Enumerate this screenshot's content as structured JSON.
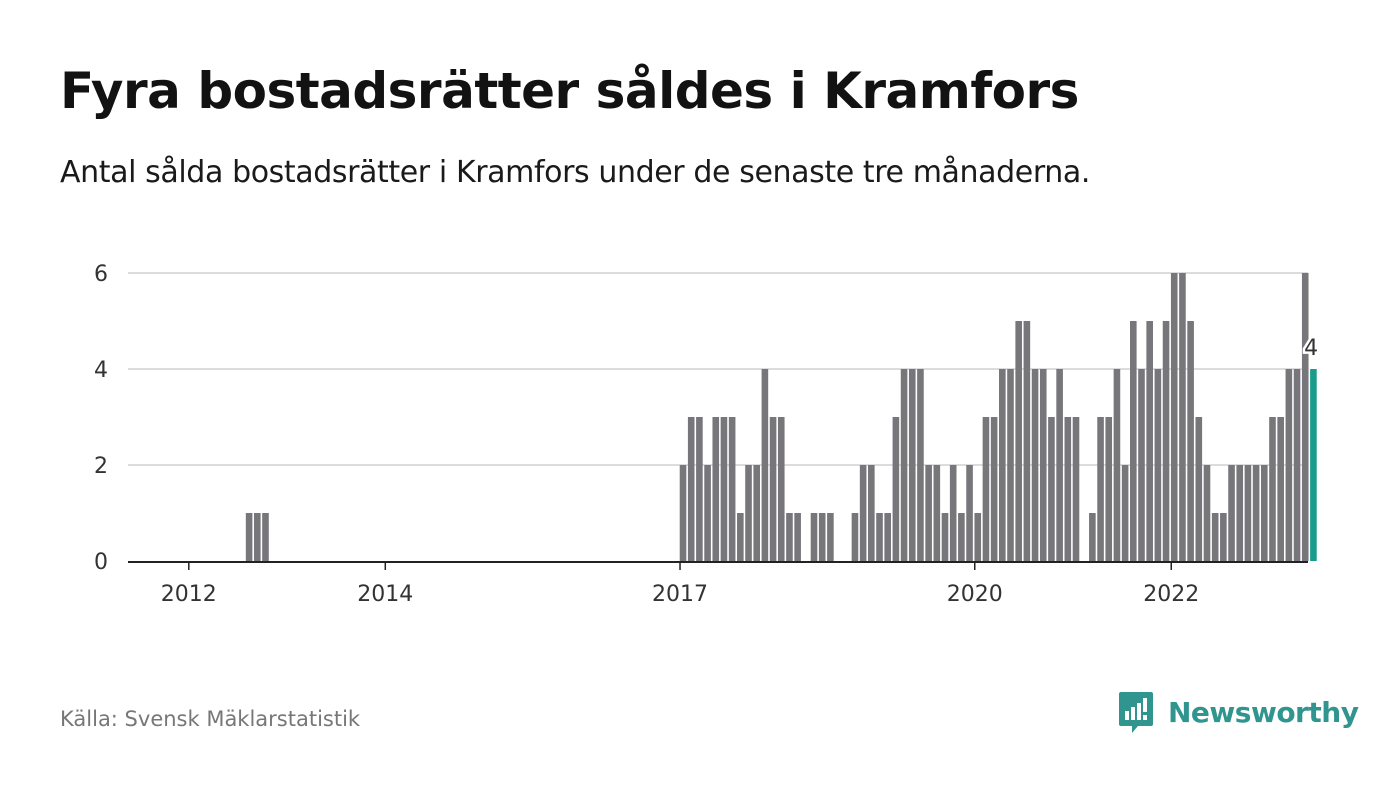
{
  "title": "Fyra bostadsrätter såldes i Kramfors",
  "subtitle": "Antal sålda bostadsrätter i Kramfors under de senaste tre månaderna.",
  "source": "Källa: Svensk Mäklarstatistik",
  "brand": {
    "name": "Newsworthy",
    "icon": "newsworthy-logo-icon",
    "color": "#2f958e"
  },
  "colors": {
    "bar": "#77767b",
    "highlight": "#1a9c8c",
    "grid": "#dcdcdc",
    "axis": "#222222"
  },
  "chart_data": {
    "type": "bar",
    "title": "Fyra bostadsrätter såldes i Kramfors",
    "xlabel": "",
    "ylabel": "",
    "ylim": [
      0,
      6
    ],
    "yticks": [
      0,
      2,
      4,
      6
    ],
    "xticks": [
      "2012",
      "2014",
      "2017",
      "2020",
      "2022"
    ],
    "grid": true,
    "highlight_label": "4",
    "series": [
      {
        "values": [
          null,
          null,
          null,
          null,
          null,
          null,
          null,
          1,
          1,
          1,
          null,
          null,
          null,
          null,
          null,
          null,
          null,
          null,
          null,
          null,
          null,
          null,
          null,
          null,
          null,
          null,
          null,
          null,
          null,
          null,
          null,
          null,
          null,
          null,
          null,
          null,
          null,
          null,
          null,
          null,
          null,
          null,
          null,
          null,
          null,
          null,
          null,
          null,
          null,
          null,
          null,
          null,
          null,
          null,
          null,
          null,
          null,
          null,
          null,
          null,
          2,
          3,
          3,
          2,
          3,
          3,
          3,
          1,
          2,
          2,
          4,
          3,
          3,
          1,
          1,
          null,
          1,
          1,
          1,
          null,
          null,
          1,
          2,
          2,
          1,
          1,
          3,
          4,
          4,
          4,
          2,
          2,
          1,
          2,
          1,
          2,
          1,
          3,
          3,
          4,
          4,
          5,
          5,
          4,
          4,
          3,
          4,
          3,
          3,
          null,
          1,
          3,
          3,
          4,
          2,
          5,
          4,
          5,
          4,
          5,
          6,
          6,
          5,
          3,
          2,
          1,
          1,
          2,
          2,
          2,
          2,
          2,
          3,
          3,
          4,
          4,
          6,
          4
        ]
      }
    ]
  }
}
